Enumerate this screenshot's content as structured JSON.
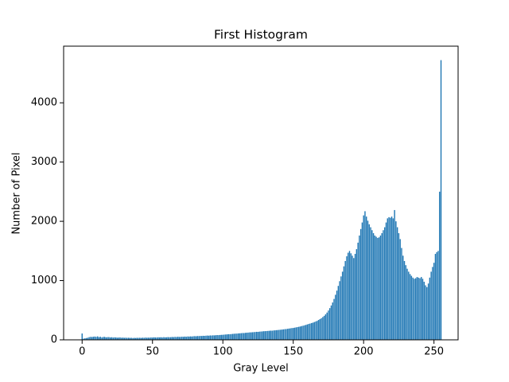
{
  "chart_data": {
    "type": "bar",
    "title": "First Histogram",
    "x_label": "Gray Level",
    "y_label": "Number of Pixel",
    "color": "#1f77b4",
    "x": [
      0,
      1,
      2,
      3,
      4,
      5,
      6,
      7,
      8,
      9,
      10,
      11,
      12,
      13,
      14,
      15,
      16,
      17,
      18,
      19,
      20,
      21,
      22,
      23,
      24,
      25,
      26,
      27,
      28,
      29,
      30,
      31,
      32,
      33,
      34,
      35,
      36,
      37,
      38,
      39,
      40,
      41,
      42,
      43,
      44,
      45,
      46,
      47,
      48,
      49,
      50,
      51,
      52,
      53,
      54,
      55,
      56,
      57,
      58,
      59,
      60,
      61,
      62,
      63,
      64,
      65,
      66,
      67,
      68,
      69,
      70,
      71,
      72,
      73,
      74,
      75,
      76,
      77,
      78,
      79,
      80,
      81,
      82,
      83,
      84,
      85,
      86,
      87,
      88,
      89,
      90,
      91,
      92,
      93,
      94,
      95,
      96,
      97,
      98,
      99,
      100,
      101,
      102,
      103,
      104,
      105,
      106,
      107,
      108,
      109,
      110,
      111,
      112,
      113,
      114,
      115,
      116,
      117,
      118,
      119,
      120,
      121,
      122,
      123,
      124,
      125,
      126,
      127,
      128,
      129,
      130,
      131,
      132,
      133,
      134,
      135,
      136,
      137,
      138,
      139,
      140,
      141,
      142,
      143,
      144,
      145,
      146,
      147,
      148,
      149,
      150,
      151,
      152,
      153,
      154,
      155,
      156,
      157,
      158,
      159,
      160,
      161,
      162,
      163,
      164,
      165,
      166,
      167,
      168,
      169,
      170,
      171,
      172,
      173,
      174,
      175,
      176,
      177,
      178,
      179,
      180,
      181,
      182,
      183,
      184,
      185,
      186,
      187,
      188,
      189,
      190,
      191,
      192,
      193,
      194,
      195,
      196,
      197,
      198,
      199,
      200,
      201,
      202,
      203,
      204,
      205,
      206,
      207,
      208,
      209,
      210,
      211,
      212,
      213,
      214,
      215,
      216,
      217,
      218,
      219,
      220,
      221,
      222,
      223,
      224,
      225,
      226,
      227,
      228,
      229,
      230,
      231,
      232,
      233,
      234,
      235,
      236,
      237,
      238,
      239,
      240,
      241,
      242,
      243,
      244,
      245,
      246,
      247,
      248,
      249,
      250,
      251,
      252,
      253,
      254,
      255
    ],
    "values": [
      107,
      20,
      25,
      30,
      35,
      45,
      50,
      48,
      52,
      55,
      50,
      58,
      45,
      52,
      40,
      48,
      50,
      42,
      45,
      46,
      40,
      44,
      38,
      42,
      40,
      36,
      38,
      40,
      35,
      37,
      34,
      36,
      33,
      35,
      32,
      34,
      30,
      33,
      31,
      34,
      33,
      35,
      32,
      36,
      34,
      38,
      35,
      37,
      36,
      40,
      38,
      42,
      40,
      39,
      43,
      41,
      44,
      40,
      45,
      42,
      43,
      46,
      44,
      45,
      48,
      46,
      50,
      47,
      52,
      49,
      50,
      53,
      51,
      55,
      52,
      57,
      55,
      58,
      56,
      60,
      62,
      60,
      64,
      63,
      66,
      65,
      68,
      67,
      70,
      72,
      70,
      74,
      73,
      76,
      75,
      78,
      80,
      79,
      82,
      84,
      85,
      88,
      90,
      92,
      95,
      94,
      97,
      100,
      102,
      104,
      105,
      108,
      110,
      112,
      115,
      114,
      118,
      120,
      122,
      125,
      126,
      128,
      130,
      132,
      135,
      134,
      138,
      140,
      142,
      145,
      146,
      148,
      150,
      152,
      155,
      154,
      158,
      160,
      163,
      165,
      168,
      170,
      173,
      176,
      180,
      182,
      186,
      190,
      194,
      198,
      200,
      205,
      210,
      215,
      220,
      225,
      232,
      238,
      245,
      252,
      260,
      268,
      275,
      283,
      290,
      300,
      310,
      320,
      335,
      350,
      365,
      385,
      405,
      430,
      460,
      495,
      535,
      580,
      630,
      690,
      760,
      830,
      910,
      990,
      1070,
      1150,
      1240,
      1330,
      1410,
      1470,
      1500,
      1460,
      1420,
      1380,
      1450,
      1530,
      1640,
      1760,
      1870,
      1980,
      2100,
      2170,
      2080,
      2010,
      1950,
      1900,
      1850,
      1800,
      1760,
      1740,
      1720,
      1730,
      1760,
      1800,
      1850,
      1900,
      1980,
      2050,
      2070,
      2060,
      2080,
      2050,
      2190,
      2000,
      1900,
      1800,
      1700,
      1550,
      1420,
      1330,
      1260,
      1200,
      1150,
      1110,
      1080,
      1050,
      1030,
      1040,
      1060,
      1050,
      1040,
      1060,
      1030,
      980,
      920,
      890,
      950,
      1050,
      1150,
      1230,
      1300,
      1450,
      1480,
      1500,
      2500,
      4720
    ],
    "xlim": [
      -13.14,
      267.14
    ],
    "xticks": [
      0,
      50,
      100,
      150,
      200,
      250
    ],
    "ylim": [
      0,
      4956
    ],
    "yticks": [
      0,
      1000,
      2000,
      3000,
      4000
    ]
  }
}
